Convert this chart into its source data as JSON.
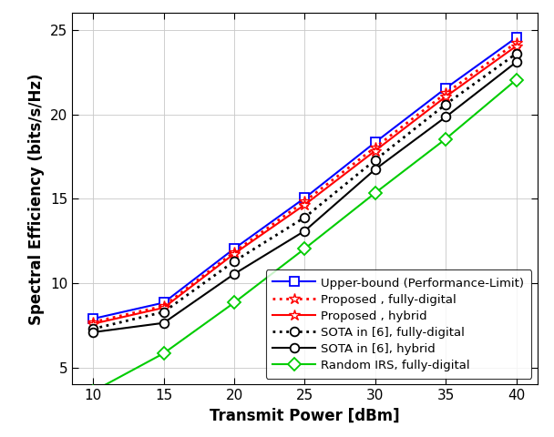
{
  "x": [
    10,
    15,
    20,
    25,
    30,
    35,
    40
  ],
  "upper_bound": [
    7.9,
    8.85,
    12.05,
    15.05,
    18.35,
    21.55,
    24.55
  ],
  "proposed_fd": [
    7.7,
    8.65,
    11.85,
    14.85,
    18.05,
    21.25,
    24.25
  ],
  "proposed_hybrid": [
    7.6,
    8.55,
    11.75,
    14.65,
    17.85,
    21.05,
    24.05
  ],
  "sota_fd": [
    7.3,
    8.3,
    11.3,
    13.9,
    17.3,
    20.6,
    23.6
  ],
  "sota_hybrid": [
    7.1,
    7.65,
    10.55,
    13.1,
    16.75,
    19.85,
    23.1
  ],
  "random_irs": [
    3.6,
    5.85,
    8.85,
    12.05,
    15.35,
    18.55,
    22.05
  ],
  "xlabel": "Transmit Power [dBm]",
  "ylabel": "Spectral Efficiency (bits/s/Hz)",
  "xlim": [
    8.5,
    41.5
  ],
  "ylim": [
    4.0,
    26.0
  ],
  "xticks": [
    10,
    15,
    20,
    25,
    30,
    35,
    40
  ],
  "yticks": [
    5,
    10,
    15,
    20,
    25
  ],
  "color_blue": "#0000FF",
  "color_red": "#FF0000",
  "color_black": "#000000",
  "color_green": "#00CC00",
  "legend_labels": [
    "Upper-bound (Performance-Limit)",
    "Proposed , fully-digital",
    "Proposed , hybrid",
    "SOTA in [6], fully-digital",
    "SOTA in [6], hybrid",
    "Random IRS, fully-digital"
  ],
  "tick_fontsize": 11,
  "label_fontsize": 12,
  "legend_fontsize": 9.5,
  "linewidth": 1.5,
  "markersize_sq": 7,
  "markersize_star": 9,
  "markersize_circ": 7,
  "markersize_diam": 7
}
